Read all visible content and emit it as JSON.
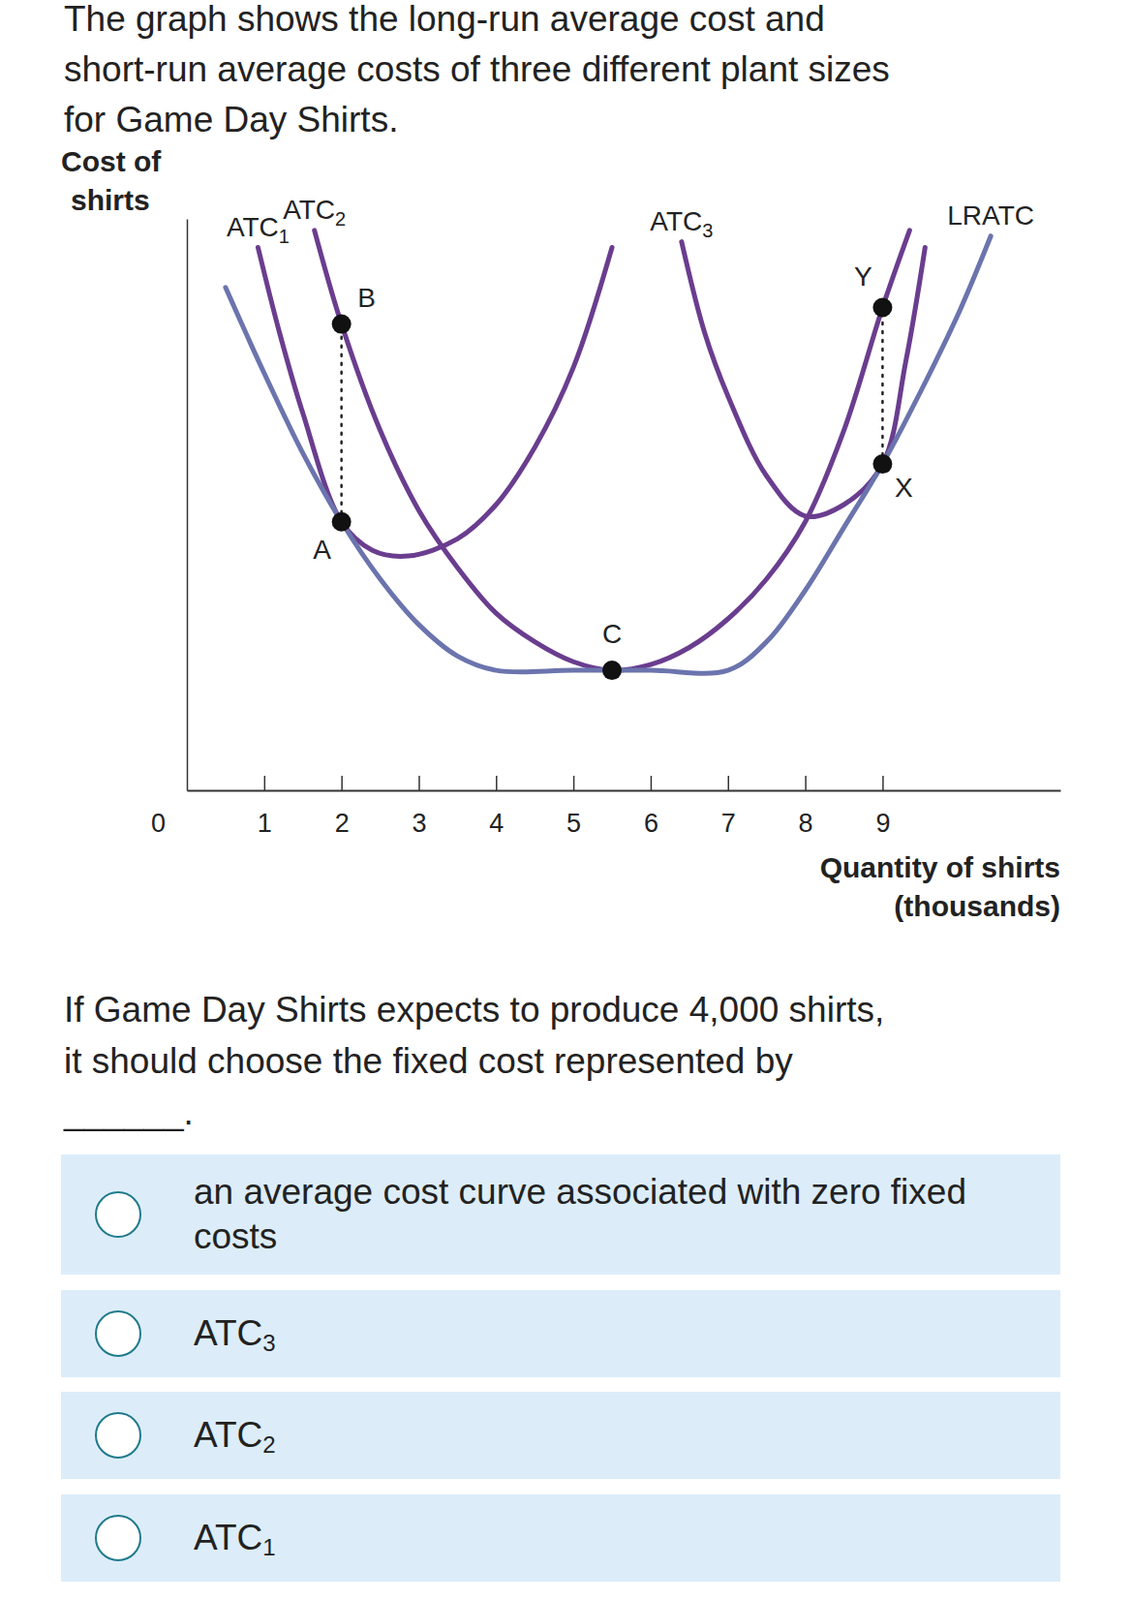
{
  "prompt": [
    "The graph shows the long-run average cost and",
    "short-run average costs of three different plant sizes",
    "for Game Day Shirts."
  ],
  "chart_data": {
    "type": "line",
    "ylabel": [
      "Cost of",
      "shirts"
    ],
    "xlabel": [
      "Quantity of shirts",
      "(thousands)"
    ],
    "xlim": [
      0,
      11.3
    ],
    "xticks": [
      0,
      1,
      2,
      3,
      4,
      5,
      6,
      7,
      8,
      9
    ],
    "ylim": [
      0,
      10
    ],
    "yticks": [],
    "tick_labels": "x",
    "grid": false,
    "series": [
      {
        "name": "ATC1",
        "color": "#6a3d8f",
        "x": [
          0.92,
          1.2,
          1.5,
          2,
          2.4,
          2.86,
          3.5,
          4,
          4.5,
          5,
          5.5
        ],
        "values": [
          9.5,
          8.0,
          6.6,
          4.7,
          4.2,
          4.1,
          4.4,
          5.0,
          6.0,
          7.4,
          9.5
        ]
      },
      {
        "name": "ATC3",
        "color": "#6a3d8f",
        "x": [
          6.4,
          6.7,
          7,
          7.5,
          8,
          8.5,
          9,
          9.3,
          9.55
        ],
        "values": [
          9.6,
          8.0,
          6.9,
          5.5,
          4.8,
          5.0,
          5.71,
          7.5,
          9.5
        ]
      },
      {
        "name": "ATC2",
        "color": "#6a3d8f",
        "x": [
          1.65,
          2,
          2.5,
          3,
          3.5,
          4,
          4.5,
          5,
          5.5,
          6,
          6.5,
          7,
          7.5,
          8,
          8.5,
          9,
          9.35
        ],
        "values": [
          9.8,
          8.16,
          6.3,
          4.9,
          3.9,
          3.1,
          2.6,
          2.25,
          2.1,
          2.2,
          2.5,
          3.0,
          3.7,
          4.7,
          6.3,
          8.45,
          9.8
        ]
      },
      {
        "name": "LRATC",
        "color": "#6b74ad",
        "x": [
          0.5,
          1,
          1.5,
          2,
          2.5,
          3,
          3.5,
          4,
          5,
          6,
          7,
          7.5,
          8,
          8.5,
          9,
          9.5,
          10,
          10.4
        ],
        "values": [
          8.8,
          7.3,
          5.9,
          4.7,
          3.7,
          2.9,
          2.35,
          2.1,
          2.1,
          2.1,
          2.1,
          2.6,
          3.5,
          4.6,
          5.71,
          7.0,
          8.4,
          9.7
        ]
      }
    ],
    "points": {
      "labels": [
        "A",
        "B",
        "C",
        "X",
        "Y"
      ],
      "x": [
        2,
        2,
        5.5,
        9,
        9
      ],
      "values": [
        4.7,
        8.16,
        2.1,
        5.71,
        8.45
      ]
    },
    "dotted_lines": [
      {
        "x": 2,
        "from": 4.7,
        "to": 8.16
      },
      {
        "x": 9,
        "from": 5.71,
        "to": 8.45
      }
    ]
  },
  "question": [
    "If Game Day Shirts expects to produce 4,000 shirts,",
    "it should choose the fixed cost represented by",
    "______."
  ],
  "options": [
    "an average cost curve associated with zero fixed costs",
    "ATC3",
    "ATC2",
    "ATC1"
  ]
}
